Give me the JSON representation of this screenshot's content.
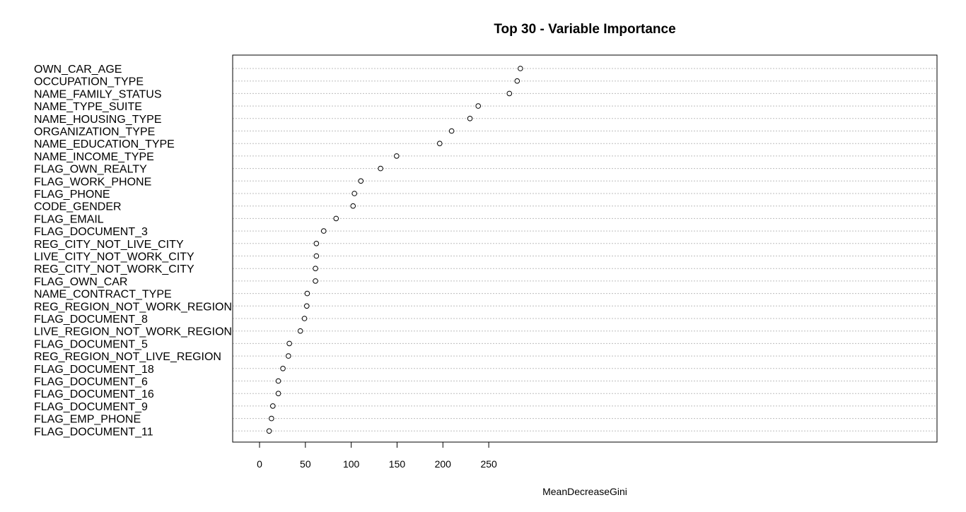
{
  "chart_data": {
    "type": "scatter",
    "title": "Top 30 - Variable Importance",
    "xlabel": "MeanDecreaseGini",
    "ylabel": "",
    "xlim": [
      -12,
      296
    ],
    "xticks": [
      0,
      50,
      100,
      150,
      200,
      250
    ],
    "grid": "horizontal dotted guide per variable",
    "series": [
      {
        "points": [
          {
            "label": "OWN_CAR_AGE",
            "value": 284.5
          },
          {
            "label": "OCCUPATION_TYPE",
            "value": 281.0
          },
          {
            "label": "NAME_FAMILY_STATUS",
            "value": 272.5
          },
          {
            "label": "NAME_TYPE_SUITE",
            "value": 238.5
          },
          {
            "label": "NAME_HOUSING_TYPE",
            "value": 229.5
          },
          {
            "label": "ORGANIZATION_TYPE",
            "value": 209.5
          },
          {
            "label": "NAME_EDUCATION_TYPE",
            "value": 196.5
          },
          {
            "label": "NAME_INCOME_TYPE",
            "value": 149.5
          },
          {
            "label": "FLAG_OWN_REALTY",
            "value": 132.0
          },
          {
            "label": "FLAG_WORK_PHONE",
            "value": 110.5
          },
          {
            "label": "FLAG_PHONE",
            "value": 103.5
          },
          {
            "label": "CODE_GENDER",
            "value": 102.0
          },
          {
            "label": "FLAG_EMAIL",
            "value": 83.5
          },
          {
            "label": "FLAG_DOCUMENT_3",
            "value": 70.0
          },
          {
            "label": "REG_CITY_NOT_LIVE_CITY",
            "value": 62.0
          },
          {
            "label": "LIVE_CITY_NOT_WORK_CITY",
            "value": 62.0
          },
          {
            "label": "REG_CITY_NOT_WORK_CITY",
            "value": 61.0
          },
          {
            "label": "FLAG_OWN_CAR",
            "value": 61.0
          },
          {
            "label": "NAME_CONTRACT_TYPE",
            "value": 52.0
          },
          {
            "label": "REG_REGION_NOT_WORK_REGION",
            "value": 51.5
          },
          {
            "label": "FLAG_DOCUMENT_8",
            "value": 49.0
          },
          {
            "label": "LIVE_REGION_NOT_WORK_REGION",
            "value": 44.5
          },
          {
            "label": "FLAG_DOCUMENT_5",
            "value": 32.5
          },
          {
            "label": "REG_REGION_NOT_LIVE_REGION",
            "value": 31.5
          },
          {
            "label": "FLAG_DOCUMENT_18",
            "value": 25.5
          },
          {
            "label": "FLAG_DOCUMENT_6",
            "value": 20.5
          },
          {
            "label": "FLAG_DOCUMENT_16",
            "value": 20.5
          },
          {
            "label": "FLAG_DOCUMENT_9",
            "value": 14.5
          },
          {
            "label": "FLAG_EMP_PHONE",
            "value": 13.0
          },
          {
            "label": "FLAG_DOCUMENT_11",
            "value": 10.5
          }
        ]
      }
    ]
  }
}
